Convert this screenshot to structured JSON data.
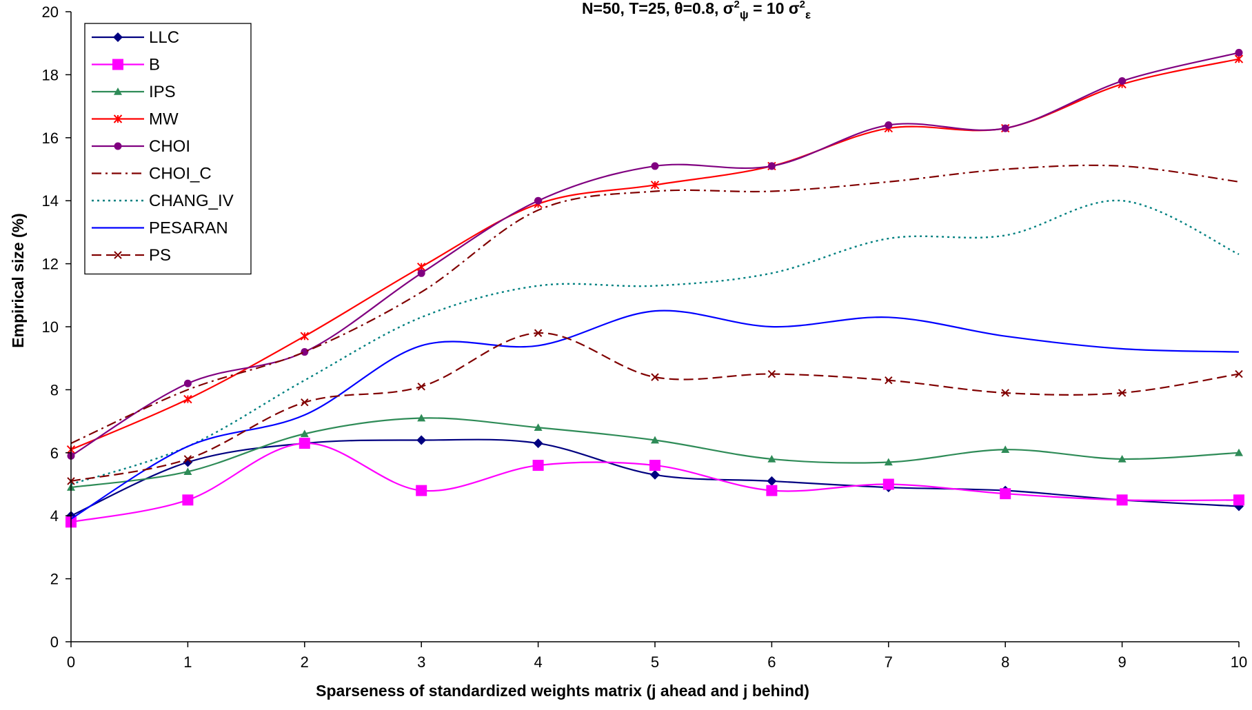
{
  "chart_data": {
    "type": "line",
    "title": "N=50, T=25, θ=0.8, σ²ψ = 10 σ²ε",
    "title_parts": {
      "main": "N=50, T=25, θ=0.8, σ",
      "sup1": "2",
      "sub1": "ψ",
      "mid": " = 10 σ",
      "sup2": "2",
      "sub2": "ε"
    },
    "xlabel": "Sparseness of standardized weights matrix (j ahead and j behind)",
    "ylabel": "Empirical size (%)",
    "x": [
      0,
      1,
      2,
      3,
      4,
      5,
      6,
      7,
      8,
      9,
      10
    ],
    "xlim": [
      0,
      10
    ],
    "ylim": [
      0,
      20
    ],
    "yticks": [
      0,
      2,
      4,
      6,
      8,
      10,
      12,
      14,
      16,
      18,
      20
    ],
    "grid": false,
    "legend_position": "top-left",
    "series": [
      {
        "name": "LLC",
        "color": "#000080",
        "dash": "none",
        "marker": "diamond",
        "values": [
          4.0,
          5.7,
          6.3,
          6.4,
          6.3,
          5.3,
          5.1,
          4.9,
          4.8,
          4.5,
          4.3
        ]
      },
      {
        "name": "B",
        "color": "#ff00ff",
        "dash": "none",
        "marker": "square",
        "values": [
          3.8,
          4.5,
          6.3,
          4.8,
          5.6,
          5.6,
          4.8,
          5.0,
          4.7,
          4.5,
          4.5
        ]
      },
      {
        "name": "IPS",
        "color": "#2e8b57",
        "dash": "none",
        "marker": "triangle",
        "values": [
          4.9,
          5.4,
          6.6,
          7.1,
          6.8,
          6.4,
          5.8,
          5.7,
          6.1,
          5.8,
          6.0
        ]
      },
      {
        "name": "MW",
        "color": "#ff0000",
        "dash": "none",
        "marker": "star",
        "values": [
          6.1,
          7.7,
          9.7,
          11.9,
          13.9,
          14.5,
          15.1,
          16.3,
          16.3,
          17.7,
          18.5
        ]
      },
      {
        "name": "CHOI",
        "color": "#800080",
        "dash": "none",
        "marker": "circle",
        "values": [
          5.9,
          8.2,
          9.2,
          11.7,
          14.0,
          15.1,
          15.1,
          16.4,
          16.3,
          17.8,
          18.7
        ]
      },
      {
        "name": "CHOI_C",
        "color": "#800000",
        "dash": "dashdot",
        "marker": "none",
        "values": [
          6.3,
          8.0,
          9.2,
          11.1,
          13.7,
          14.3,
          14.3,
          14.6,
          15.0,
          15.1,
          14.6
        ]
      },
      {
        "name": "CHANG_IV",
        "color": "#008080",
        "dash": "dotted",
        "marker": "none",
        "values": [
          5.0,
          6.2,
          8.3,
          10.3,
          11.3,
          11.3,
          11.7,
          12.8,
          12.9,
          14.0,
          12.3
        ]
      },
      {
        "name": "PESARAN",
        "color": "#0000ff",
        "dash": "none",
        "marker": "none",
        "values": [
          3.9,
          6.2,
          7.2,
          9.4,
          9.4,
          10.5,
          10.0,
          10.3,
          9.7,
          9.3,
          9.2
        ]
      },
      {
        "name": "PS",
        "color": "#800000",
        "dash": "dashed",
        "marker": "x",
        "values": [
          5.1,
          5.8,
          7.6,
          8.1,
          9.8,
          8.4,
          8.5,
          8.3,
          7.9,
          7.9,
          8.5
        ]
      }
    ]
  }
}
